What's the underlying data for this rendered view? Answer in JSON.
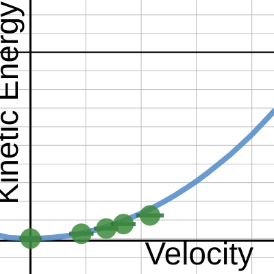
{
  "chart_data": {
    "type": "scatter",
    "title": "",
    "xlabel": "Velocity",
    "ylabel": "Kinetic Energy",
    "xlim": [
      -0.55,
      4.4
    ],
    "ylim": [
      -0.95,
      6.4
    ],
    "grid": true,
    "minor_grid": true,
    "series": [
      {
        "kind": "curve",
        "color": "#5b8fc9",
        "x": [
          -0.55,
          -0.4,
          -0.2,
          0,
          0.2,
          0.4,
          0.6,
          0.8,
          1.0,
          1.2,
          1.4,
          1.6,
          1.8,
          2.0,
          2.2,
          2.4,
          2.6,
          2.8,
          3.0,
          3.2,
          3.4,
          3.6,
          3.8,
          4.0,
          4.2,
          4.4
        ],
        "y": [
          0.08,
          0.03,
          0.01,
          0.0,
          0.01,
          0.03,
          0.06,
          0.1,
          0.17,
          0.24,
          0.33,
          0.43,
          0.55,
          0.68,
          0.82,
          0.98,
          1.15,
          1.34,
          1.54,
          1.76,
          2.0,
          2.24,
          2.51,
          2.79,
          3.1,
          3.42
        ]
      },
      {
        "kind": "points",
        "color": "#3d8a3d",
        "x": [
          0.0,
          0.92,
          1.37,
          1.68,
          2.16
        ],
        "y": [
          0.0,
          0.13,
          0.27,
          0.39,
          0.62
        ],
        "xerr": [
          0.2,
          0.22,
          0.22,
          0.22,
          0.25
        ]
      }
    ]
  }
}
